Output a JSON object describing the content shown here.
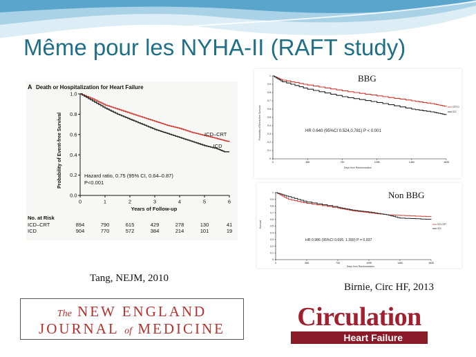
{
  "slide": {
    "title": "Même pour les NYHA-II (RAFT study)",
    "caption_left": "Tang, NEJM, 2010",
    "caption_right": "Birnie, Circ HF, 2013",
    "colors": {
      "title": "#1f6f86",
      "wave_light": "#cfe7f2",
      "wave_mid": "#9ccbe2",
      "wave_dark": "#4f9cc4"
    }
  },
  "logos": {
    "nejm": {
      "the": "The",
      "new_england": "NEW ENGLAND",
      "journal": "JOURNAL",
      "of": "of",
      "medicine": "MEDICINE"
    },
    "circulation": {
      "word": "Circulation",
      "sub": "Heart Failure"
    }
  },
  "chart_data": [
    {
      "type": "line",
      "panel_letter": "A",
      "title": "Death or Hospitalization for Heart Failure",
      "xlabel": "Years of Follow-up",
      "ylabel": "Probability of Event-free Survival",
      "xlim": [
        0,
        6
      ],
      "ylim": [
        0,
        1.0
      ],
      "xticks": [
        "0",
        "1",
        "2",
        "3",
        "4",
        "5",
        "6"
      ],
      "yticks": [
        "0.0",
        "0.2",
        "0.4",
        "0.6",
        "0.8",
        "1.0"
      ],
      "grid": false,
      "series": [
        {
          "name": "ICD–CRT",
          "color": "#d0352b",
          "x": [
            0,
            0.5,
            1,
            1.5,
            2,
            2.5,
            3,
            3.5,
            4,
            4.5,
            5,
            5.5,
            5.8,
            6
          ],
          "y": [
            1.0,
            0.95,
            0.89,
            0.85,
            0.81,
            0.77,
            0.73,
            0.69,
            0.66,
            0.62,
            0.59,
            0.56,
            0.54,
            0.53
          ]
        },
        {
          "name": "ICD",
          "color": "#222222",
          "x": [
            0,
            0.5,
            1,
            1.5,
            2,
            2.5,
            3,
            3.5,
            4,
            4.5,
            5,
            5.5,
            5.8,
            6
          ],
          "y": [
            1.0,
            0.93,
            0.86,
            0.8,
            0.75,
            0.7,
            0.65,
            0.61,
            0.57,
            0.53,
            0.49,
            0.46,
            0.43,
            0.43
          ]
        }
      ],
      "annotations": [
        "Hazard ratio, 0.75 (95% CI, 0.64–0.87)",
        "P<0.001"
      ],
      "at_risk": {
        "title": "No. at Risk",
        "rows": [
          {
            "label": "ICD–CRT",
            "values": [
              "894",
              "790",
              "615",
              "429",
              "278",
              "130",
              "41"
            ]
          },
          {
            "label": "ICD",
            "values": [
              "904",
              "770",
              "572",
              "384",
              "214",
              "101",
              "19"
            ]
          }
        ]
      }
    },
    {
      "type": "line",
      "title": "BBG",
      "xlabel": "Days from Randomization",
      "ylabel": "Probability of Event-free Survival",
      "xlim": [
        0,
        1825
      ],
      "ylim": [
        0,
        1.0
      ],
      "xticks": [
        "0",
        "365",
        "730",
        "1095",
        "1460",
        "1825"
      ],
      "yticks": [
        "0",
        "0.1",
        "0.2",
        "0.3",
        "0.4",
        "0.5",
        "0.6",
        "0.7",
        "0.8",
        "0.9",
        "1"
      ],
      "grid": false,
      "legend": {
        "position": "right",
        "entries": [
          "CRT-D",
          "ICD"
        ]
      },
      "series": [
        {
          "name": "CRT-D",
          "color": "#d0352b",
          "x": [
            0,
            100,
            365,
            730,
            1095,
            1460,
            1700,
            1825
          ],
          "y": [
            1.0,
            0.95,
            0.89,
            0.82,
            0.76,
            0.7,
            0.66,
            0.63
          ]
        },
        {
          "name": "ICD",
          "color": "#222222",
          "x": [
            0,
            100,
            365,
            730,
            1095,
            1460,
            1700,
            1825
          ],
          "y": [
            1.0,
            0.93,
            0.84,
            0.75,
            0.68,
            0.6,
            0.56,
            0.53
          ]
        }
      ],
      "annotations": [
        "HR 0.640  (95%CI 0.524,0.781)  P < 0.001"
      ]
    },
    {
      "type": "line",
      "title": "Non BBG",
      "xlabel": "Days from Randomization",
      "ylabel": "Survival",
      "xlim": [
        0,
        1825
      ],
      "ylim": [
        0,
        1.0
      ],
      "xticks": [
        "0",
        "365",
        "730",
        "1095",
        "1460",
        "1825"
      ],
      "yticks": [
        "0",
        "0.1",
        "0.2",
        "0.3",
        "0.4",
        "0.5",
        "0.6",
        "0.7",
        "0.8",
        "0.9",
        "1"
      ],
      "grid": false,
      "legend": {
        "position": "right",
        "entries": [
          "ICD-CRT",
          "ICD"
        ]
      },
      "series": [
        {
          "name": "ICD-CRT",
          "color": "#d0352b",
          "x": [
            0,
            150,
            365,
            730,
            900,
            1095,
            1300,
            1460,
            1825
          ],
          "y": [
            1.0,
            0.9,
            0.84,
            0.77,
            0.73,
            0.7,
            0.67,
            0.66,
            0.64
          ]
        },
        {
          "name": "ICD",
          "color": "#222222",
          "x": [
            0,
            150,
            365,
            730,
            900,
            1095,
            1300,
            1460,
            1825
          ],
          "y": [
            1.0,
            0.94,
            0.86,
            0.78,
            0.74,
            0.71,
            0.67,
            0.62,
            0.6
          ]
        }
      ],
      "annotations": [
        "HR 0.986 (95%CI 0.695, 1.399) P = 0.937"
      ]
    }
  ]
}
